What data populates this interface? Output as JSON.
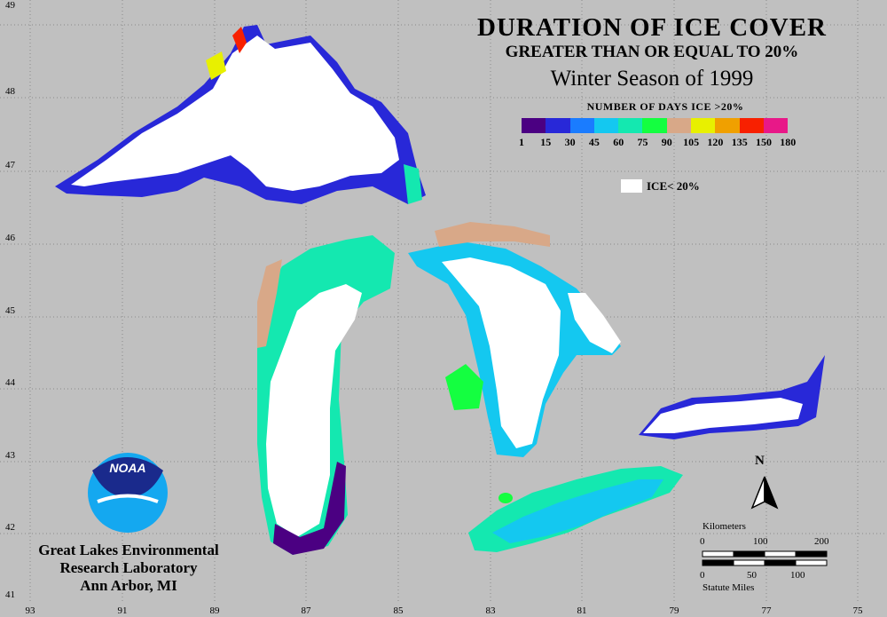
{
  "title": {
    "main": "DURATION OF ICE COVER",
    "sub": "GREATER THAN OR EQUAL TO 20%",
    "season": "Winter Season of 1999"
  },
  "legend": {
    "title": "NUMBER OF DAYS ICE >20%",
    "ticks": [
      "1",
      "15",
      "30",
      "45",
      "60",
      "75",
      "90",
      "105",
      "120",
      "135",
      "150",
      "180"
    ],
    "colors": [
      "#4b0082",
      "#2828d8",
      "#1a7cff",
      "#14c8f0",
      "#14e8b0",
      "#14ff40",
      "#d8a888",
      "#e8f000",
      "#f0a000",
      "#f82000",
      "#e81888"
    ],
    "ice_label": "ICE< 20%"
  },
  "axes": {
    "latitudes": [
      "49",
      "48",
      "47",
      "46",
      "45",
      "44",
      "43",
      "42",
      "41"
    ],
    "longitudes": [
      "93",
      "91",
      "89",
      "87",
      "85",
      "83",
      "81",
      "79",
      "77",
      "75"
    ]
  },
  "organization": {
    "line1": "Great Lakes Environmental",
    "line2": "Research Laboratory",
    "line3": "Ann Arbor, MI",
    "logo_text": "NOAA"
  },
  "north_arrow": {
    "label": "N"
  },
  "scale": {
    "km_label": "Kilometers",
    "km_ticks": [
      "0",
      "100",
      "200"
    ],
    "mi_ticks": [
      "0",
      "50",
      "100"
    ],
    "mi_label": "Statute Miles"
  },
  "colors": {
    "background": "#c0c0c0",
    "grid": "#8a8a8a",
    "ice_lt_20": "#ffffff"
  }
}
